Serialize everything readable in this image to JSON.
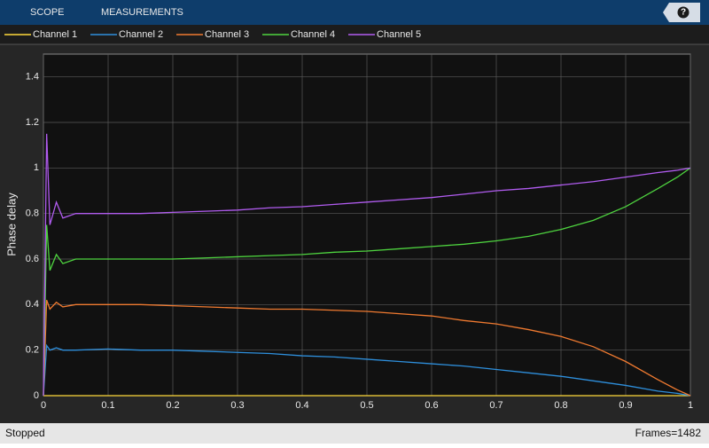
{
  "toolbar": {
    "tabs": [
      "SCOPE",
      "MEASUREMENTS"
    ],
    "help": "?"
  },
  "status": {
    "left": "Stopped",
    "right": "Frames=1482"
  },
  "chart_data": {
    "type": "line",
    "ylabel": "Phase delay",
    "x": [
      0,
      0.005,
      0.01,
      0.02,
      0.03,
      0.05,
      0.1,
      0.15,
      0.2,
      0.25,
      0.3,
      0.35,
      0.4,
      0.45,
      0.5,
      0.55,
      0.6,
      0.65,
      0.7,
      0.75,
      0.8,
      0.85,
      0.9,
      0.95,
      0.98,
      1
    ],
    "series": [
      {
        "name": "Channel 1",
        "color": "#ffd93b",
        "values": [
          0,
          0,
          0,
          0,
          0,
          0,
          0,
          0,
          0,
          0,
          0,
          0,
          0,
          0,
          0,
          0,
          0,
          0,
          0,
          0,
          0,
          0,
          0,
          0,
          0,
          0
        ]
      },
      {
        "name": "Channel 2",
        "color": "#2e8fdc",
        "values": [
          0,
          0.22,
          0.2,
          0.21,
          0.2,
          0.2,
          0.205,
          0.2,
          0.2,
          0.195,
          0.19,
          0.185,
          0.175,
          0.17,
          0.16,
          0.15,
          0.14,
          0.13,
          0.115,
          0.1,
          0.085,
          0.065,
          0.045,
          0.02,
          0.01,
          0
        ]
      },
      {
        "name": "Channel 3",
        "color": "#f07a30",
        "values": [
          0,
          0.42,
          0.38,
          0.41,
          0.39,
          0.4,
          0.4,
          0.4,
          0.395,
          0.39,
          0.385,
          0.38,
          0.38,
          0.375,
          0.37,
          0.36,
          0.35,
          0.33,
          0.315,
          0.29,
          0.26,
          0.215,
          0.15,
          0.07,
          0.025,
          0
        ]
      },
      {
        "name": "Channel 4",
        "color": "#4ed33f",
        "values": [
          0,
          0.75,
          0.55,
          0.62,
          0.58,
          0.6,
          0.6,
          0.6,
          0.6,
          0.605,
          0.61,
          0.615,
          0.62,
          0.63,
          0.635,
          0.645,
          0.655,
          0.665,
          0.68,
          0.7,
          0.73,
          0.77,
          0.83,
          0.91,
          0.96,
          1
        ]
      },
      {
        "name": "Channel 5",
        "color": "#b15cf0",
        "values": [
          0,
          1.15,
          0.75,
          0.85,
          0.78,
          0.8,
          0.8,
          0.8,
          0.805,
          0.81,
          0.815,
          0.825,
          0.83,
          0.84,
          0.85,
          0.86,
          0.87,
          0.885,
          0.9,
          0.91,
          0.925,
          0.94,
          0.96,
          0.98,
          0.99,
          1
        ]
      }
    ],
    "xlim": [
      0,
      1
    ],
    "xticks": [
      0,
      0.1,
      0.2,
      0.3,
      0.4,
      0.5,
      0.6,
      0.7,
      0.8,
      0.9,
      1
    ],
    "ylim": [
      0,
      1.5
    ],
    "yticks": [
      0,
      0.2,
      0.4,
      0.6,
      0.8,
      1,
      1.2,
      1.4
    ],
    "grid": true,
    "legend": "top"
  }
}
